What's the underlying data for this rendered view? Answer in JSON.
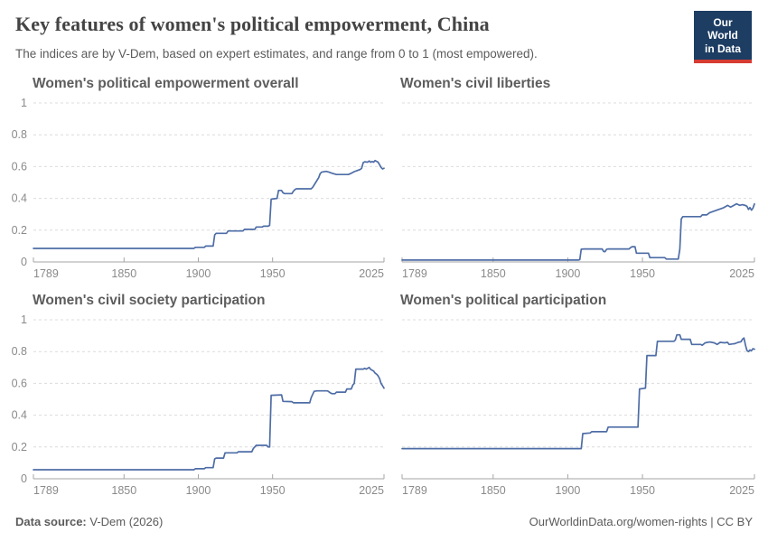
{
  "header": {
    "title": "Key features of women's political empowerment, China",
    "subtitle": "The indices are by V-Dem, based on expert estimates, and range from 0 to 1 (most empowered).",
    "logo": {
      "line1": "Our World",
      "line2": "in Data"
    }
  },
  "footer": {
    "source_label": "Data source:",
    "source_value": " V-Dem (2026)",
    "right_text": "OurWorldinData.org/women-rights | CC BY"
  },
  "colors": {
    "line": "#4e6da6",
    "grid": "#dcdcdc",
    "axis": "#a5a5a5",
    "tick_text": "#8a8a8a",
    "logo_bg": "#1d3d63",
    "logo_red": "#d73c32"
  },
  "chart_data": [
    {
      "type": "line",
      "title": "Women's political empowerment overall",
      "entity": "China",
      "xlim": [
        1789,
        2025
      ],
      "ylim": [
        0,
        1
      ],
      "xticks": [
        1789,
        1850,
        1900,
        1950,
        2025
      ],
      "yticks": [
        0,
        0.2,
        0.4,
        0.6,
        0.8,
        1
      ],
      "show_y_labels": true,
      "points": [
        [
          1789,
          0.085
        ],
        [
          1897,
          0.085
        ],
        [
          1898,
          0.092
        ],
        [
          1904,
          0.092
        ],
        [
          1905,
          0.1
        ],
        [
          1910,
          0.1
        ],
        [
          1911,
          0.17
        ],
        [
          1912,
          0.18
        ],
        [
          1919,
          0.18
        ],
        [
          1920,
          0.195
        ],
        [
          1930,
          0.195
        ],
        [
          1931,
          0.205
        ],
        [
          1938,
          0.205
        ],
        [
          1939,
          0.22
        ],
        [
          1943,
          0.22
        ],
        [
          1944,
          0.225
        ],
        [
          1947,
          0.225
        ],
        [
          1948,
          0.23
        ],
        [
          1949,
          0.395
        ],
        [
          1953,
          0.4
        ],
        [
          1954,
          0.45
        ],
        [
          1956,
          0.45
        ],
        [
          1957,
          0.435
        ],
        [
          1958,
          0.43
        ],
        [
          1963,
          0.43
        ],
        [
          1964,
          0.445
        ],
        [
          1965,
          0.455
        ],
        [
          1966,
          0.46
        ],
        [
          1976,
          0.46
        ],
        [
          1977,
          0.47
        ],
        [
          1979,
          0.5
        ],
        [
          1981,
          0.53
        ],
        [
          1982,
          0.555
        ],
        [
          1983,
          0.565
        ],
        [
          1986,
          0.57
        ],
        [
          1988,
          0.565
        ],
        [
          1990,
          0.558
        ],
        [
          1993,
          0.55
        ],
        [
          2001,
          0.55
        ],
        [
          2003,
          0.558
        ],
        [
          2005,
          0.568
        ],
        [
          2007,
          0.575
        ],
        [
          2009,
          0.582
        ],
        [
          2010,
          0.59
        ],
        [
          2011,
          0.625
        ],
        [
          2012,
          0.63
        ],
        [
          2014,
          0.628
        ],
        [
          2015,
          0.635
        ],
        [
          2016,
          0.627
        ],
        [
          2017,
          0.632
        ],
        [
          2018,
          0.628
        ],
        [
          2019,
          0.638
        ],
        [
          2020,
          0.633
        ],
        [
          2021,
          0.628
        ],
        [
          2022,
          0.612
        ],
        [
          2023,
          0.595
        ],
        [
          2024,
          0.585
        ],
        [
          2025,
          0.59
        ]
      ]
    },
    {
      "type": "line",
      "title": "Women's civil liberties",
      "entity": "China",
      "xlim": [
        1789,
        2025
      ],
      "ylim": [
        0,
        1
      ],
      "xticks": [
        1789,
        1850,
        1900,
        1950,
        2025
      ],
      "yticks": [
        0,
        0.2,
        0.4,
        0.6,
        0.8,
        1
      ],
      "show_y_labels": false,
      "points": [
        [
          1789,
          0.012
        ],
        [
          1907,
          0.012
        ],
        [
          1908,
          0.015
        ],
        [
          1909,
          0.08
        ],
        [
          1911,
          0.082
        ],
        [
          1923,
          0.082
        ],
        [
          1924,
          0.066
        ],
        [
          1925,
          0.065
        ],
        [
          1926,
          0.08
        ],
        [
          1927,
          0.082
        ],
        [
          1941,
          0.082
        ],
        [
          1942,
          0.09
        ],
        [
          1943,
          0.096
        ],
        [
          1945,
          0.096
        ],
        [
          1946,
          0.055
        ],
        [
          1954,
          0.055
        ],
        [
          1955,
          0.027
        ],
        [
          1965,
          0.027
        ],
        [
          1966,
          0.018
        ],
        [
          1974,
          0.018
        ],
        [
          1975,
          0.08
        ],
        [
          1976,
          0.27
        ],
        [
          1977,
          0.285
        ],
        [
          1989,
          0.285
        ],
        [
          1990,
          0.296
        ],
        [
          1993,
          0.296
        ],
        [
          1995,
          0.31
        ],
        [
          1998,
          0.32
        ],
        [
          2001,
          0.33
        ],
        [
          2004,
          0.34
        ],
        [
          2006,
          0.35
        ],
        [
          2007,
          0.356
        ],
        [
          2009,
          0.345
        ],
        [
          2011,
          0.355
        ],
        [
          2013,
          0.366
        ],
        [
          2015,
          0.356
        ],
        [
          2017,
          0.36
        ],
        [
          2019,
          0.355
        ],
        [
          2020,
          0.35
        ],
        [
          2021,
          0.33
        ],
        [
          2022,
          0.342
        ],
        [
          2023,
          0.326
        ],
        [
          2024,
          0.338
        ],
        [
          2025,
          0.365
        ]
      ]
    },
    {
      "type": "line",
      "title": "Women's civil society participation",
      "entity": "China",
      "xlim": [
        1789,
        2025
      ],
      "ylim": [
        0,
        1
      ],
      "xticks": [
        1789,
        1850,
        1900,
        1950,
        2025
      ],
      "yticks": [
        0,
        0.2,
        0.4,
        0.6,
        0.8,
        1
      ],
      "show_y_labels": true,
      "points": [
        [
          1789,
          0.057
        ],
        [
          1897,
          0.057
        ],
        [
          1898,
          0.063
        ],
        [
          1904,
          0.063
        ],
        [
          1905,
          0.07
        ],
        [
          1910,
          0.07
        ],
        [
          1911,
          0.125
        ],
        [
          1912,
          0.13
        ],
        [
          1917,
          0.13
        ],
        [
          1918,
          0.163
        ],
        [
          1926,
          0.163
        ],
        [
          1927,
          0.17
        ],
        [
          1936,
          0.17
        ],
        [
          1937,
          0.19
        ],
        [
          1939,
          0.21
        ],
        [
          1946,
          0.21
        ],
        [
          1947,
          0.2
        ],
        [
          1948,
          0.2
        ],
        [
          1949,
          0.525
        ],
        [
          1956,
          0.528
        ],
        [
          1957,
          0.487
        ],
        [
          1963,
          0.485
        ],
        [
          1964,
          0.478
        ],
        [
          1975,
          0.478
        ],
        [
          1976,
          0.51
        ],
        [
          1978,
          0.55
        ],
        [
          1980,
          0.553
        ],
        [
          1987,
          0.553
        ],
        [
          1989,
          0.54
        ],
        [
          1990,
          0.535
        ],
        [
          1992,
          0.535
        ],
        [
          1993,
          0.545
        ],
        [
          1999,
          0.545
        ],
        [
          2000,
          0.565
        ],
        [
          2003,
          0.565
        ],
        [
          2004,
          0.59
        ],
        [
          2005,
          0.6
        ],
        [
          2006,
          0.69
        ],
        [
          2011,
          0.69
        ],
        [
          2012,
          0.695
        ],
        [
          2013,
          0.69
        ],
        [
          2014,
          0.695
        ],
        [
          2015,
          0.7
        ],
        [
          2016,
          0.688
        ],
        [
          2018,
          0.678
        ],
        [
          2019,
          0.665
        ],
        [
          2020,
          0.658
        ],
        [
          2021,
          0.648
        ],
        [
          2022,
          0.63
        ],
        [
          2023,
          0.6
        ],
        [
          2024,
          0.585
        ],
        [
          2025,
          0.57
        ]
      ]
    },
    {
      "type": "line",
      "title": "Women's political participation",
      "entity": "China",
      "xlim": [
        1789,
        2025
      ],
      "ylim": [
        0,
        1
      ],
      "xticks": [
        1789,
        1850,
        1900,
        1950,
        2025
      ],
      "yticks": [
        0,
        0.2,
        0.4,
        0.6,
        0.8,
        1
      ],
      "show_y_labels": false,
      "points": [
        [
          1789,
          0.19
        ],
        [
          1909,
          0.19
        ],
        [
          1910,
          0.284
        ],
        [
          1915,
          0.288
        ],
        [
          1916,
          0.296
        ],
        [
          1926,
          0.296
        ],
        [
          1927,
          0.325
        ],
        [
          1947,
          0.325
        ],
        [
          1948,
          0.565
        ],
        [
          1952,
          0.57
        ],
        [
          1953,
          0.775
        ],
        [
          1959,
          0.775
        ],
        [
          1960,
          0.865
        ],
        [
          1971,
          0.865
        ],
        [
          1972,
          0.872
        ],
        [
          1973,
          0.905
        ],
        [
          1975,
          0.905
        ],
        [
          1976,
          0.877
        ],
        [
          1982,
          0.877
        ],
        [
          1983,
          0.845
        ],
        [
          1989,
          0.845
        ],
        [
          1990,
          0.84
        ],
        [
          1992,
          0.855
        ],
        [
          1995,
          0.86
        ],
        [
          1998,
          0.855
        ],
        [
          2000,
          0.845
        ],
        [
          2002,
          0.858
        ],
        [
          2005,
          0.855
        ],
        [
          2007,
          0.858
        ],
        [
          2008,
          0.845
        ],
        [
          2010,
          0.848
        ],
        [
          2012,
          0.85
        ],
        [
          2014,
          0.858
        ],
        [
          2016,
          0.862
        ],
        [
          2017,
          0.878
        ],
        [
          2018,
          0.885
        ],
        [
          2019,
          0.84
        ],
        [
          2020,
          0.807
        ],
        [
          2021,
          0.8
        ],
        [
          2022,
          0.81
        ],
        [
          2023,
          0.805
        ],
        [
          2024,
          0.818
        ],
        [
          2025,
          0.815
        ]
      ]
    }
  ]
}
